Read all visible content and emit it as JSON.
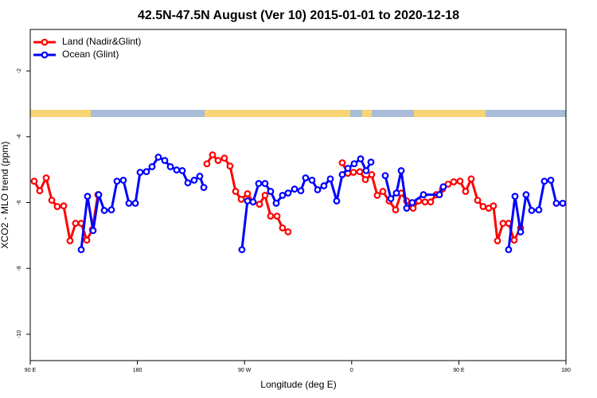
{
  "chart_data": {
    "type": "line",
    "title": "42.5N-47.5N August (Ver 10)   2015-01-01 to 2020-12-18",
    "x_label": "Longitude (deg E)",
    "y_label": "XCO2 - MLO trend (ppm)",
    "xlim": [
      90,
      540
    ],
    "xticks": [
      {
        "value": 90,
        "label": "90 E"
      },
      180,
      {
        "value": 270,
        "label": "90 W"
      },
      {
        "value": 360,
        "label": "0"
      },
      {
        "value": 450,
        "label": "90 E"
      },
      {
        "value": 540,
        "label": "180"
      }
    ],
    "ylim": [
      -10.8,
      -0.74
    ],
    "yticks": [
      -2,
      -4,
      -6,
      -8,
      -10
    ],
    "legend": "top-left",
    "series": [
      {
        "name": "Land (Nadir&Glint)",
        "color": "#ff0000",
        "x": [
          93.3,
          98.0,
          103.4,
          108.1,
          112.7,
          118.1,
          123.4,
          128.1,
          132.8,
          137.5,
          142.2,
          146.8,
          null,
          238.4,
          243.1,
          247.8,
          253.1,
          257.8,
          262.5,
          267.2,
          272.5,
          277.2,
          282.6,
          287.2,
          291.9,
          297.3,
          301.9,
          306.6,
          null,
          352.1,
          356.8,
          361.5,
          366.8,
          371.5,
          376.8,
          381.5,
          386.2,
          391.5,
          396.9,
          401.6,
          406.2,
          411.6,
          416.3,
          421.6,
          426.3,
          431.0,
          436.3,
          441.0,
          445.7,
          451.0,
          455.7,
          460.4,
          465.8,
          470.4,
          475.1,
          479.1,
          482.5,
          487.1,
          491.8,
          496.5,
          501.9
        ],
        "values": [
          -5.35,
          -5.64,
          -5.25,
          -5.93,
          -6.12,
          -6.1,
          -7.16,
          -6.63,
          -6.63,
          -7.14,
          -6.82,
          -5.76,
          null,
          -4.82,
          -4.55,
          -4.72,
          -4.65,
          -4.89,
          -5.66,
          -5.9,
          -5.73,
          -5.98,
          -6.05,
          -5.78,
          -6.41,
          -6.41,
          -6.77,
          -6.89,
          null,
          -4.79,
          -5.11,
          -5.08,
          -5.06,
          -5.3,
          -5.15,
          -5.78,
          -5.66,
          -5.95,
          -6.22,
          -5.71,
          -5.95,
          -6.17,
          -5.95,
          -5.98,
          -5.98,
          -5.76,
          -5.59,
          -5.44,
          -5.37,
          -5.35,
          -5.66,
          -5.28,
          -5.93,
          -6.12,
          -6.17,
          -6.1,
          -7.16,
          -6.63,
          -6.63,
          -7.14,
          -6.77
        ]
      },
      {
        "name": "Ocean (Glint)",
        "color": "#0000ff",
        "x": [
          132.8,
          138.1,
          142.8,
          147.5,
          152.2,
          158.2,
          162.9,
          168.2,
          172.9,
          178.3,
          182.3,
          187.6,
          192.3,
          197.6,
          203.0,
          207.7,
          213.0,
          217.7,
          222.4,
          227.7,
          232.4,
          235.8,
          null,
          267.8,
          272.5,
          277.2,
          281.9,
          287.2,
          291.9,
          296.6,
          301.9,
          306.6,
          312.0,
          317.3,
          321.3,
          326.7,
          331.4,
          336.7,
          342.1,
          347.4,
          352.1,
          356.8,
          362.1,
          367.5,
          372.1,
          376.2,
          null,
          388.2,
          392.9,
          397.6,
          401.6,
          406.2,
          410.9,
          420.3,
          433.7,
          437.0,
          null,
          491.8,
          497.2,
          501.9,
          506.5,
          511.2,
          517.2,
          521.9,
          527.3,
          531.9,
          537.3
        ],
        "values": [
          -7.43,
          -5.81,
          -6.85,
          -5.76,
          -6.24,
          -6.22,
          -5.35,
          -5.32,
          -6.02,
          -6.02,
          -5.08,
          -5.06,
          -4.91,
          -4.62,
          -4.72,
          -4.91,
          -5.01,
          -5.03,
          -5.4,
          -5.32,
          -5.2,
          -5.54,
          null,
          -7.43,
          -5.95,
          -5.98,
          -5.42,
          -5.42,
          -5.66,
          -6.02,
          -5.78,
          -5.71,
          -5.59,
          -5.64,
          -5.25,
          -5.32,
          -5.61,
          -5.49,
          -5.28,
          -5.95,
          -5.15,
          -4.96,
          -4.82,
          -4.67,
          -5.03,
          -4.77,
          null,
          -5.18,
          -5.88,
          -5.71,
          -5.03,
          -6.17,
          -6.0,
          -5.76,
          -5.76,
          -5.52,
          null,
          -7.43,
          -5.81,
          -6.89,
          -5.76,
          -6.24,
          -6.22,
          -5.35,
          -5.32,
          -6.02,
          -6.02
        ]
      }
    ]
  }
}
